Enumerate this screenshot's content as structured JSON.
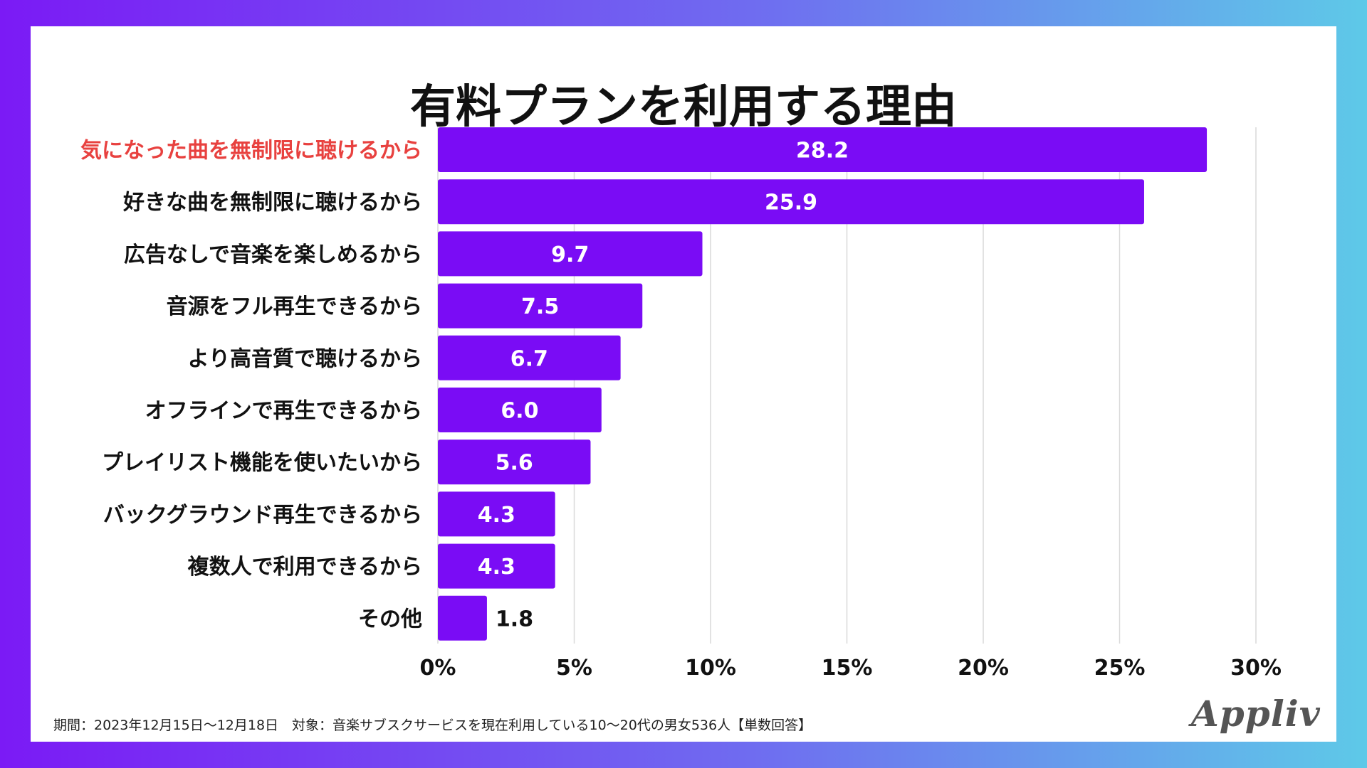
{
  "title": "有料プランを利用する理由",
  "footnote": "期間：2023年12月15日～12月18日　対象：音楽サブスクサービスを現在利用している10～20代の男女536人【単数回答】",
  "logo_text": "Appliv",
  "colors": {
    "bar": "#7a0cf5",
    "highlight_label": "#e8413f",
    "label": "#111111",
    "grid": "#d9d9d9",
    "value_inside": "#ffffff",
    "value_outside": "#111111"
  },
  "chart_data": {
    "type": "bar",
    "orientation": "horizontal",
    "categories": [
      "気になった曲を無制限に聴けるから",
      "好きな曲を無制限に聴けるから",
      "広告なしで音楽を楽しめるから",
      "音源をフル再生できるから",
      "より高音質で聴けるから",
      "オフラインで再生できるから",
      "プレイリスト機能を使いたいから",
      "バックグラウンド再生できるから",
      "複数人で利用できるから",
      "その他"
    ],
    "values": [
      28.2,
      25.9,
      9.7,
      7.5,
      6.7,
      6.0,
      5.6,
      4.3,
      4.3,
      1.8
    ],
    "value_labels": [
      "28.2",
      "25.9",
      "9.7",
      "7.5",
      "6.7",
      "6.0",
      "5.6",
      "4.3",
      "4.3",
      "1.8"
    ],
    "highlighted_index": 0,
    "xlim": [
      0,
      30
    ],
    "xticks": [
      0,
      5,
      10,
      15,
      20,
      25,
      30
    ],
    "xtick_labels": [
      "0%",
      "5%",
      "10%",
      "15%",
      "20%",
      "25%",
      "30%"
    ],
    "title": "有料プランを利用する理由",
    "xlabel": "",
    "ylabel": "",
    "grid": true
  }
}
